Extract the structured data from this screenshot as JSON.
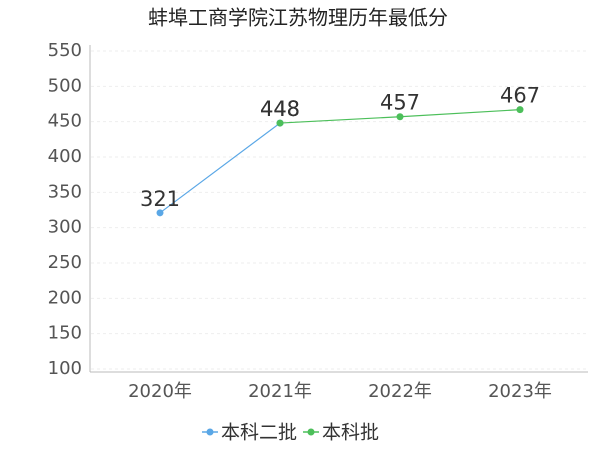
{
  "chart_data": {
    "type": "line",
    "title": "蚌埠工商学院江苏物理历年最低分",
    "categories": [
      "2020年",
      "2021年",
      "2022年",
      "2023年"
    ],
    "series": [
      {
        "name": "本科二批",
        "color": "#5aa7e6",
        "values": [
          321,
          448,
          null,
          null
        ]
      },
      {
        "name": "本科批",
        "color": "#4cbf5a",
        "values": [
          null,
          448,
          457,
          467
        ]
      }
    ],
    "ylim": [
      100,
      550
    ],
    "yticks": [
      100,
      150,
      200,
      250,
      300,
      350,
      400,
      450,
      500,
      550
    ],
    "grid": true
  }
}
